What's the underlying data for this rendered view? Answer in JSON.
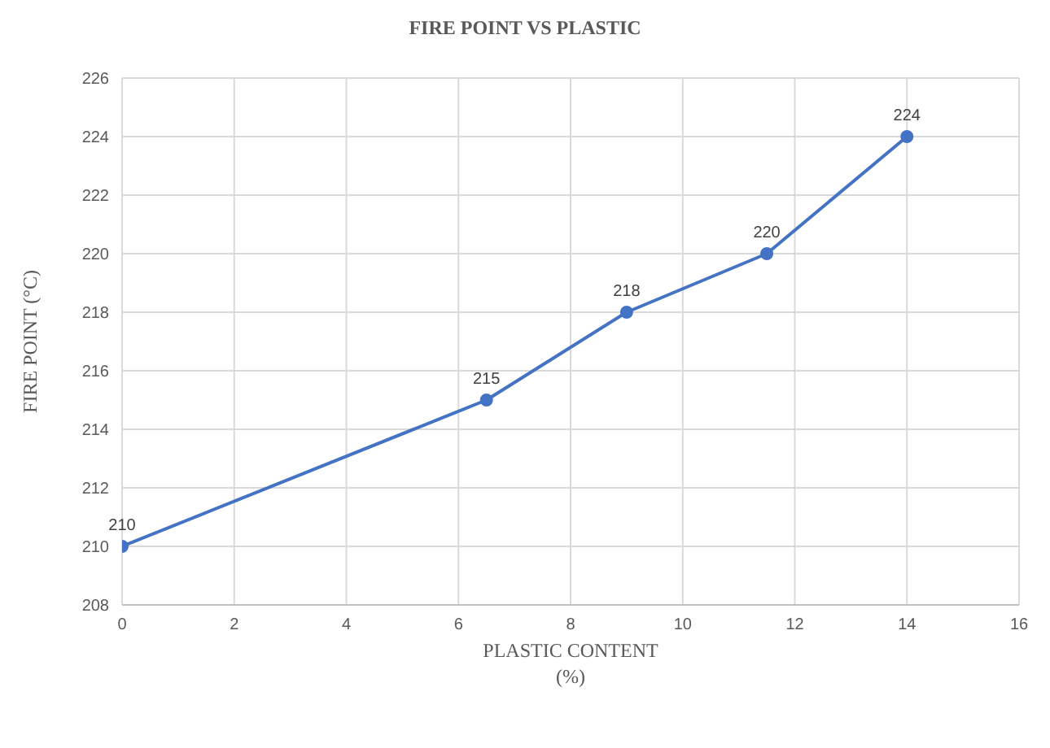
{
  "chart_data": {
    "type": "line",
    "title": "FIRE POINT VS PLASTIC",
    "xlabel": "PLASTIC CONTENT\n(%)",
    "ylabel": "FIRE POINT (°C)",
    "x": [
      0,
      6.5,
      9,
      11.5,
      14
    ],
    "series": [
      {
        "color": "#4472c4",
        "values": [
          210,
          215,
          218,
          220,
          224
        ]
      }
    ],
    "xlim": [
      0,
      16
    ],
    "xticks": [
      0,
      2,
      4,
      6,
      8,
      10,
      12,
      14,
      16
    ],
    "ylim": [
      208,
      226
    ],
    "yticks": [
      208,
      210,
      212,
      214,
      216,
      218,
      220,
      222,
      224,
      226
    ],
    "grid": true,
    "marker": "circle",
    "data_labels": true,
    "legend": false
  }
}
